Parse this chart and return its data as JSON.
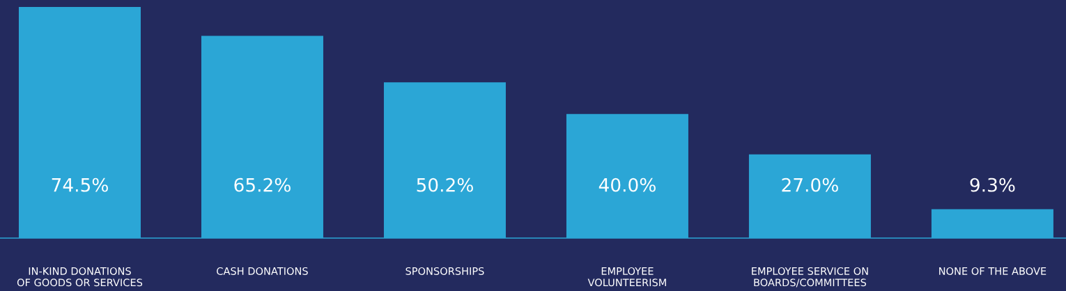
{
  "chart_data": {
    "type": "bar",
    "categories": [
      "IN-KIND DONATIONS\nOF GOODS OR SERVICES",
      "CASH DONATIONS",
      "SPONSORSHIPS",
      "EMPLOYEE\nVOLUNTEERISM",
      "EMPLOYEE SERVICE ON\nBOARDS/COMMITTEES",
      "NONE OF THE ABOVE"
    ],
    "values": [
      74.5,
      65.2,
      50.2,
      40.0,
      27.0,
      9.3
    ],
    "value_labels": [
      "74.5%",
      "65.2%",
      "50.2%",
      "40.0%",
      "27.0%",
      "9.3%"
    ],
    "color": "#2ba6d6",
    "grid": false,
    "legend": false
  }
}
